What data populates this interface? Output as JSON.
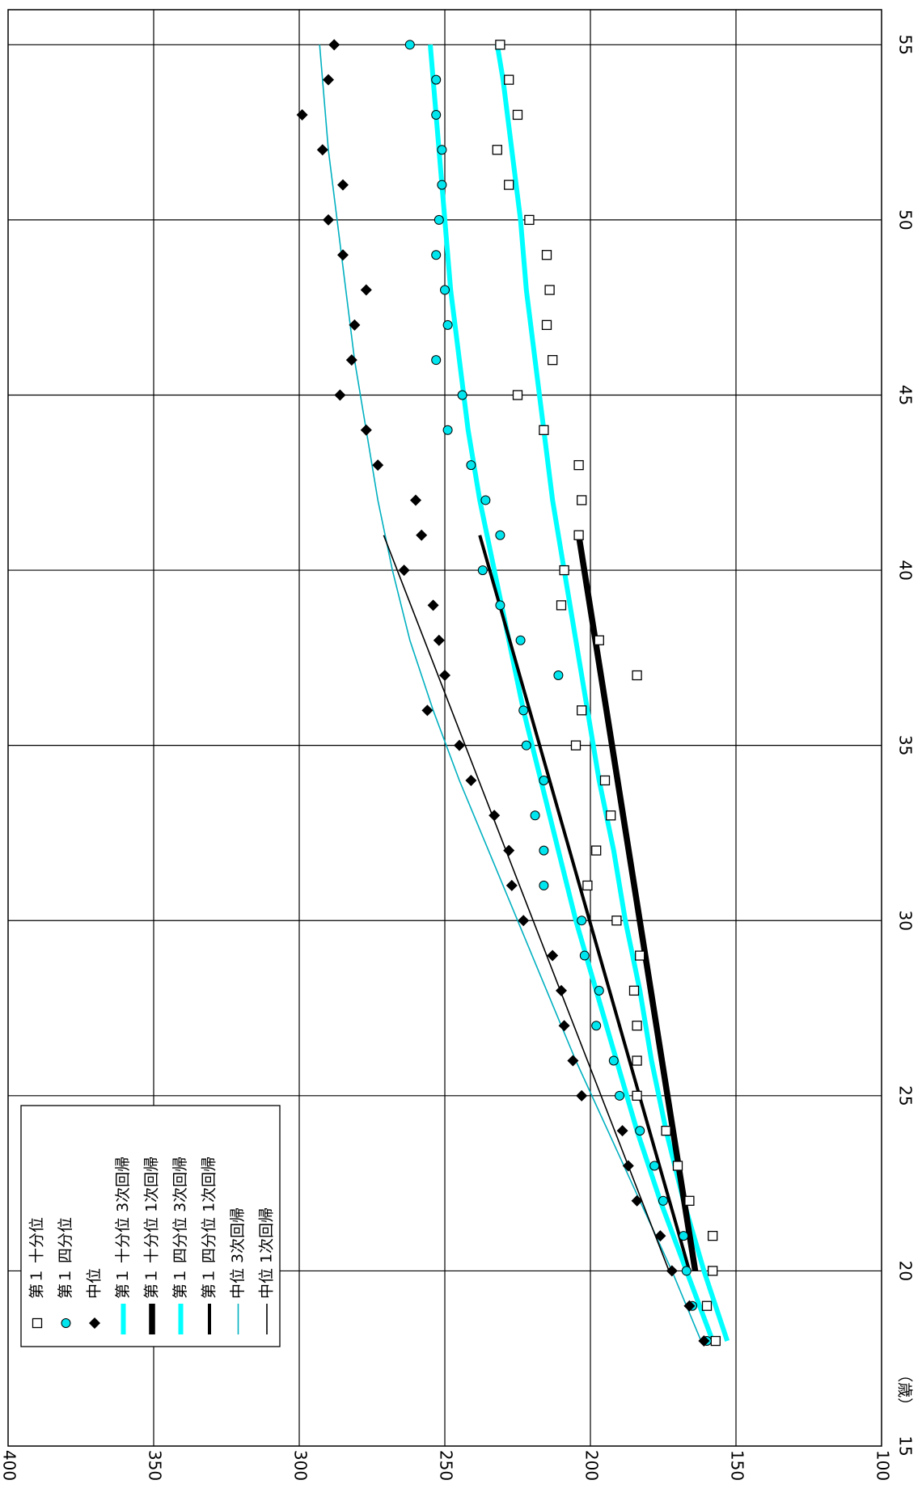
{
  "chart_data": {
    "type": "scatter",
    "x_unit_label": "（歳）",
    "x_axis": {
      "range": [
        15,
        56
      ],
      "ticks": [
        15,
        20,
        25,
        30,
        35,
        40,
        45,
        50,
        55
      ]
    },
    "y_axis": {
      "range": [
        100,
        400
      ],
      "ticks": [
        100,
        150,
        200,
        250,
        300,
        350,
        400
      ]
    },
    "grid": true,
    "orientation": "rotated-90-clockwise",
    "legend_position": "bottom-left",
    "series": [
      {
        "name": "第１ 十分位",
        "kind": "points",
        "marker": "square",
        "points": [
          [
            18,
            157
          ],
          [
            19,
            160
          ],
          [
            20,
            158
          ],
          [
            21,
            158
          ],
          [
            22,
            166
          ],
          [
            23,
            170
          ],
          [
            24,
            174
          ],
          [
            25,
            184
          ],
          [
            26,
            184
          ],
          [
            27,
            184
          ],
          [
            28,
            185
          ],
          [
            29,
            183
          ],
          [
            30,
            191
          ],
          [
            31,
            201
          ],
          [
            32,
            198
          ],
          [
            33,
            193
          ],
          [
            34,
            195
          ],
          [
            35,
            205
          ],
          [
            36,
            203
          ],
          [
            37,
            184
          ],
          [
            38,
            197
          ],
          [
            39,
            210
          ],
          [
            40,
            209
          ],
          [
            41,
            204
          ],
          [
            42,
            203
          ],
          [
            43,
            204
          ],
          [
            44,
            216
          ],
          [
            45,
            225
          ],
          [
            46,
            213
          ],
          [
            47,
            215
          ],
          [
            48,
            214
          ],
          [
            49,
            215
          ],
          [
            50,
            221
          ],
          [
            51,
            228
          ],
          [
            52,
            232
          ],
          [
            53,
            225
          ],
          [
            54,
            228
          ],
          [
            55,
            231
          ]
        ]
      },
      {
        "name": "第１ 四分位",
        "kind": "points",
        "marker": "circle",
        "points": [
          [
            18,
            160
          ],
          [
            19,
            165
          ],
          [
            20,
            167
          ],
          [
            21,
            168
          ],
          [
            22,
            175
          ],
          [
            23,
            178
          ],
          [
            24,
            183
          ],
          [
            25,
            190
          ],
          [
            26,
            192
          ],
          [
            27,
            198
          ],
          [
            28,
            197
          ],
          [
            29,
            202
          ],
          [
            30,
            203
          ],
          [
            31,
            216
          ],
          [
            32,
            216
          ],
          [
            33,
            219
          ],
          [
            34,
            216
          ],
          [
            35,
            222
          ],
          [
            36,
            223
          ],
          [
            37,
            211
          ],
          [
            38,
            224
          ],
          [
            39,
            231
          ],
          [
            40,
            237
          ],
          [
            41,
            231
          ],
          [
            42,
            236
          ],
          [
            43,
            241
          ],
          [
            44,
            249
          ],
          [
            45,
            244
          ],
          [
            46,
            253
          ],
          [
            47,
            249
          ],
          [
            48,
            250
          ],
          [
            49,
            253
          ],
          [
            50,
            252
          ],
          [
            51,
            251
          ],
          [
            52,
            251
          ],
          [
            53,
            253
          ],
          [
            54,
            253
          ],
          [
            55,
            262
          ]
        ]
      },
      {
        "name": "中位",
        "kind": "points",
        "marker": "diamond",
        "points": [
          [
            18,
            161
          ],
          [
            19,
            166
          ],
          [
            20,
            172
          ],
          [
            21,
            176
          ],
          [
            22,
            184
          ],
          [
            23,
            187
          ],
          [
            24,
            189
          ],
          [
            25,
            203
          ],
          [
            26,
            206
          ],
          [
            27,
            209
          ],
          [
            28,
            210
          ],
          [
            29,
            213
          ],
          [
            30,
            223
          ],
          [
            31,
            227
          ],
          [
            32,
            228
          ],
          [
            33,
            233
          ],
          [
            34,
            241
          ],
          [
            35,
            245
          ],
          [
            36,
            256
          ],
          [
            37,
            250
          ],
          [
            38,
            252
          ],
          [
            39,
            254
          ],
          [
            40,
            264
          ],
          [
            41,
            258
          ],
          [
            42,
            260
          ],
          [
            43,
            273
          ],
          [
            44,
            277
          ],
          [
            45,
            286
          ],
          [
            46,
            282
          ],
          [
            47,
            281
          ],
          [
            48,
            277
          ],
          [
            49,
            285
          ],
          [
            50,
            290
          ],
          [
            51,
            285
          ],
          [
            52,
            292
          ],
          [
            53,
            299
          ],
          [
            54,
            290
          ],
          [
            55,
            288
          ]
        ]
      },
      {
        "name": "第１ 十分位 3次回帰",
        "kind": "curve",
        "color": "#00ffff",
        "stroke": "thick",
        "points": [
          [
            18,
            153
          ],
          [
            20,
            161
          ],
          [
            22,
            168
          ],
          [
            24,
            174
          ],
          [
            26,
            179
          ],
          [
            28,
            183
          ],
          [
            30,
            188
          ],
          [
            32,
            192
          ],
          [
            34,
            197
          ],
          [
            36,
            201
          ],
          [
            38,
            205
          ],
          [
            40,
            209
          ],
          [
            42,
            213
          ],
          [
            44,
            216
          ],
          [
            46,
            219
          ],
          [
            48,
            222
          ],
          [
            50,
            224
          ],
          [
            52,
            227
          ],
          [
            54,
            230
          ],
          [
            55,
            232
          ]
        ]
      },
      {
        "name": "第１ 十分位 1次回帰",
        "kind": "curve",
        "color": "#000000",
        "stroke": "thickest",
        "points": [
          [
            20,
            164
          ],
          [
            41,
            204
          ]
        ]
      },
      {
        "name": "第１ 四分位 3次回帰",
        "kind": "curve",
        "color": "#00ffff",
        "stroke": "thick",
        "points": [
          [
            18,
            158
          ],
          [
            20,
            167
          ],
          [
            22,
            176
          ],
          [
            24,
            184
          ],
          [
            26,
            191
          ],
          [
            28,
            198
          ],
          [
            30,
            205
          ],
          [
            32,
            211
          ],
          [
            34,
            217
          ],
          [
            36,
            223
          ],
          [
            38,
            228
          ],
          [
            40,
            233
          ],
          [
            42,
            238
          ],
          [
            44,
            242
          ],
          [
            46,
            245
          ],
          [
            48,
            248
          ],
          [
            50,
            250
          ],
          [
            52,
            252
          ],
          [
            54,
            254
          ],
          [
            55,
            255
          ]
        ]
      },
      {
        "name": "第１ 四分位 1次回帰",
        "kind": "curve",
        "color": "#000000",
        "stroke": "medium",
        "points": [
          [
            20,
            166
          ],
          [
            41,
            238
          ]
        ]
      },
      {
        "name": "中位 3次回帰",
        "kind": "curve",
        "color": "#00b0c0",
        "stroke": "thin",
        "points": [
          [
            18,
            162
          ],
          [
            20,
            172
          ],
          [
            22,
            183
          ],
          [
            24,
            194
          ],
          [
            26,
            205
          ],
          [
            28,
            215
          ],
          [
            30,
            225
          ],
          [
            32,
            235
          ],
          [
            34,
            245
          ],
          [
            36,
            254
          ],
          [
            38,
            262
          ],
          [
            40,
            268
          ],
          [
            42,
            273
          ],
          [
            44,
            277
          ],
          [
            46,
            281
          ],
          [
            48,
            284
          ],
          [
            50,
            287
          ],
          [
            52,
            290
          ],
          [
            54,
            292
          ],
          [
            55,
            293
          ]
        ]
      },
      {
        "name": "中位 1次回帰",
        "kind": "curve",
        "color": "#000000",
        "stroke": "thin",
        "points": [
          [
            20,
            173
          ],
          [
            41,
            271
          ]
        ]
      }
    ]
  }
}
